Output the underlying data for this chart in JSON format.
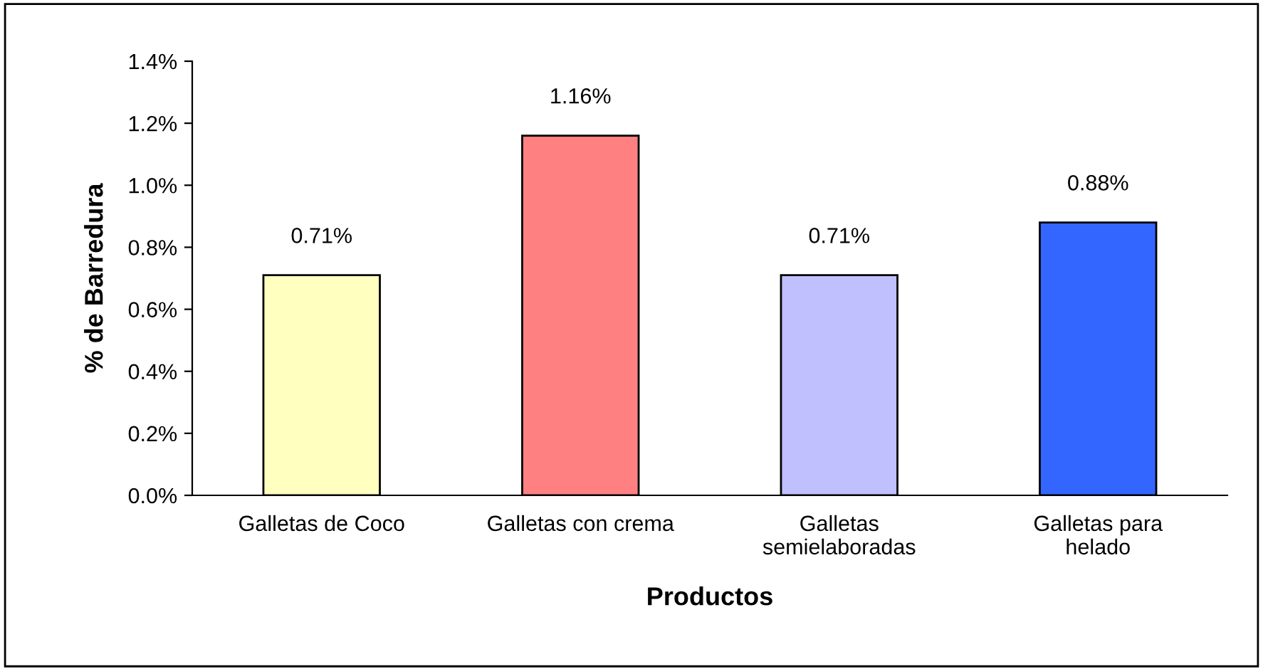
{
  "chart_data": {
    "type": "bar",
    "xlabel": "Productos",
    "ylabel": "% de Barredura",
    "categories": [
      "Galletas de Coco",
      "Galletas con crema",
      "Galletas semielaboradas",
      "Galletas para helado"
    ],
    "values": [
      0.71,
      1.16,
      0.71,
      0.88
    ],
    "colors": [
      "#ffffc0",
      "#ff8080",
      "#c0c0ff",
      "#3366ff"
    ],
    "value_labels": [
      "0.71%",
      "1.16%",
      "0.71%",
      "0.88%"
    ],
    "ylim": [
      0,
      1.4
    ],
    "yticks": [
      {
        "value": 0,
        "label": "0.0%"
      },
      {
        "value": 0.2,
        "label": "0.2%"
      },
      {
        "value": 0.4,
        "label": "0.4%"
      },
      {
        "value": 0.6,
        "label": "0.6%"
      },
      {
        "value": 0.8,
        "label": "0.8%"
      },
      {
        "value": 1.0,
        "label": "1.0%"
      },
      {
        "value": 1.2,
        "label": "1.2%"
      },
      {
        "value": 1.4,
        "label": "1.4%"
      }
    ],
    "grid": false,
    "legend": false
  }
}
